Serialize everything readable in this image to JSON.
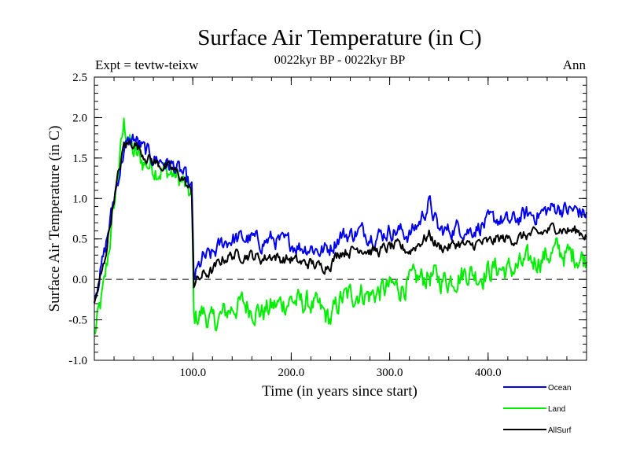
{
  "chart_data": {
    "type": "line",
    "title": "Surface Air Temperature (in C)",
    "subtitle": "0022kyr BP - 0022kyr BP",
    "expt_label": "Expt = tevtw-teixw",
    "season_label": "Ann",
    "xlabel": "Time (in years since start)",
    "ylabel": "Surface Air Temperature (in C)",
    "xlim": [
      0,
      500
    ],
    "ylim": [
      -1.0,
      2.5
    ],
    "x_ticks": [
      100,
      200,
      300,
      400
    ],
    "x_tick_labels": [
      "100.0",
      "200.0",
      "300.0",
      "400.0"
    ],
    "y_ticks": [
      -1.0,
      -0.5,
      0.0,
      0.5,
      1.0,
      1.5,
      2.0,
      2.5
    ],
    "y_tick_labels": [
      "-1.0",
      "-0.5",
      "0.0",
      "0.5",
      "1.0",
      "1.5",
      "2.0",
      "2.5"
    ],
    "reference_line": {
      "y": 0.0,
      "style": "dashed"
    },
    "legend_position": "bottom-right",
    "series": [
      {
        "name": "Ocean",
        "color": "#0000ee",
        "x": [
          0,
          10,
          20,
          30,
          40,
          50,
          60,
          70,
          80,
          90,
          99,
          101,
          110,
          120,
          130,
          140,
          150,
          160,
          170,
          180,
          190,
          200,
          210,
          220,
          230,
          240,
          250,
          260,
          270,
          280,
          290,
          300,
          310,
          320,
          330,
          340,
          350,
          360,
          370,
          380,
          390,
          400,
          410,
          420,
          430,
          440,
          450,
          460,
          470,
          480,
          490,
          500
        ],
        "y": [
          -0.2,
          0.3,
          1.0,
          1.6,
          1.75,
          1.6,
          1.5,
          1.45,
          1.4,
          1.3,
          1.1,
          0.0,
          0.25,
          0.3,
          0.45,
          0.5,
          0.5,
          0.5,
          0.45,
          0.5,
          0.45,
          0.45,
          0.4,
          0.4,
          0.35,
          0.4,
          0.55,
          0.55,
          0.6,
          0.55,
          0.55,
          0.6,
          0.6,
          0.55,
          0.7,
          0.95,
          0.6,
          0.6,
          0.65,
          0.6,
          0.65,
          0.7,
          0.75,
          0.7,
          0.75,
          0.8,
          0.8,
          0.85,
          0.9,
          0.85,
          0.85,
          0.8
        ]
      },
      {
        "name": "Land",
        "color": "#00ee00",
        "x": [
          0,
          10,
          20,
          30,
          40,
          50,
          60,
          70,
          80,
          90,
          99,
          101,
          110,
          120,
          130,
          140,
          150,
          160,
          170,
          180,
          190,
          200,
          210,
          220,
          230,
          240,
          250,
          260,
          270,
          280,
          290,
          300,
          310,
          320,
          330,
          340,
          350,
          360,
          370,
          380,
          390,
          400,
          410,
          420,
          430,
          440,
          450,
          460,
          470,
          480,
          490,
          500
        ],
        "y": [
          -0.7,
          -0.1,
          0.9,
          1.9,
          1.55,
          1.45,
          1.4,
          1.35,
          1.3,
          1.2,
          1.0,
          -0.5,
          -0.4,
          -0.55,
          -0.45,
          -0.35,
          -0.3,
          -0.35,
          -0.4,
          -0.35,
          -0.3,
          -0.25,
          -0.3,
          -0.3,
          -0.4,
          -0.5,
          -0.25,
          -0.2,
          -0.15,
          -0.2,
          -0.15,
          -0.1,
          -0.1,
          -0.05,
          0.0,
          0.05,
          0.0,
          0.0,
          0.05,
          0.1,
          0.05,
          0.1,
          0.15,
          0.1,
          0.15,
          0.2,
          0.25,
          0.3,
          0.35,
          0.3,
          0.3,
          0.25
        ]
      },
      {
        "name": "AllSurf",
        "color": "#000000",
        "x": [
          0,
          10,
          20,
          30,
          40,
          50,
          60,
          70,
          80,
          90,
          99,
          101,
          110,
          120,
          130,
          140,
          150,
          160,
          170,
          180,
          190,
          200,
          210,
          220,
          230,
          240,
          250,
          260,
          270,
          280,
          290,
          300,
          310,
          320,
          330,
          340,
          350,
          360,
          370,
          380,
          390,
          400,
          410,
          420,
          430,
          440,
          450,
          460,
          470,
          480,
          490,
          500
        ],
        "y": [
          -0.3,
          0.2,
          1.0,
          1.65,
          1.7,
          1.55,
          1.45,
          1.4,
          1.35,
          1.25,
          1.05,
          -0.05,
          0.05,
          0.1,
          0.25,
          0.3,
          0.3,
          0.3,
          0.25,
          0.3,
          0.25,
          0.25,
          0.2,
          0.2,
          0.15,
          0.2,
          0.35,
          0.35,
          0.4,
          0.35,
          0.35,
          0.4,
          0.4,
          0.35,
          0.45,
          0.55,
          0.4,
          0.4,
          0.45,
          0.4,
          0.45,
          0.45,
          0.5,
          0.5,
          0.5,
          0.55,
          0.55,
          0.6,
          0.65,
          0.6,
          0.6,
          0.55
        ]
      }
    ]
  }
}
